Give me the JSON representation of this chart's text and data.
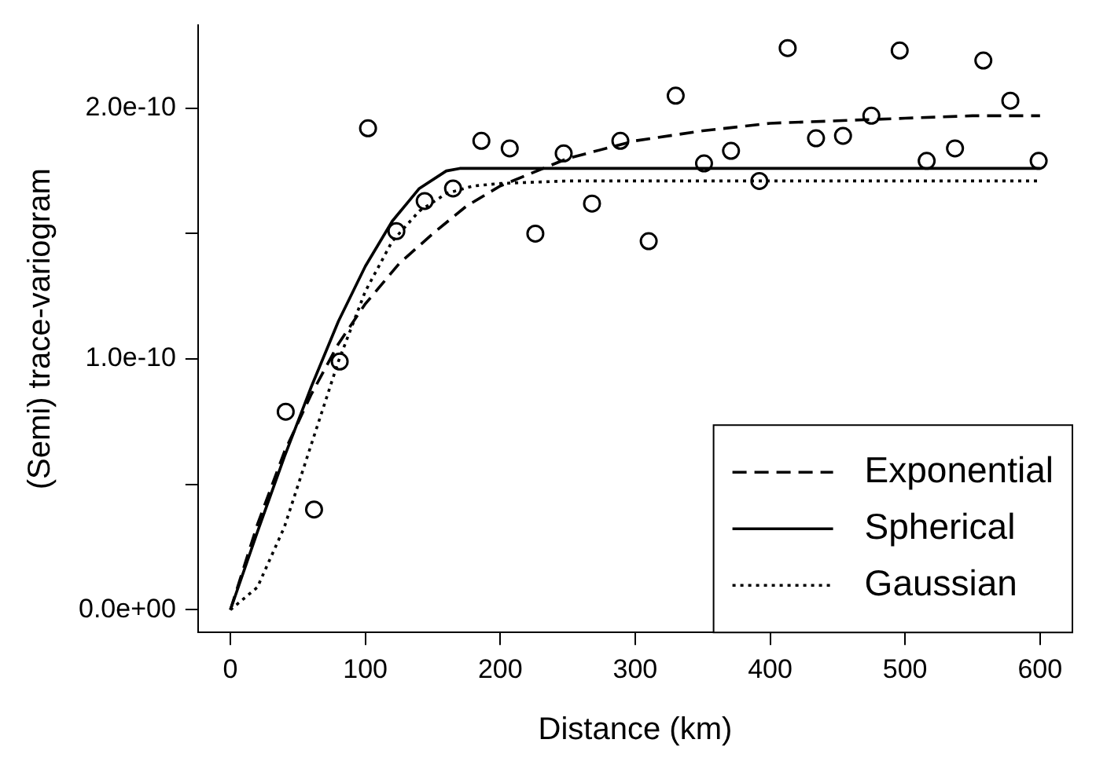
{
  "chart_data": {
    "type": "scatter",
    "xlabel": "Distance (km)",
    "ylabel": "(Semi) trace-variogram",
    "xlim": [
      -24,
      624
    ],
    "ylim": [
      -9e-12,
      2.33e-10
    ],
    "xticks": [
      0,
      100,
      200,
      300,
      400,
      500,
      600
    ],
    "yticks": [
      {
        "value": 0,
        "label": "0.0e+00"
      },
      {
        "value": 5e-11,
        "label": null
      },
      {
        "value": 1e-10,
        "label": "1.0e-10"
      },
      {
        "value": 1.5e-10,
        "label": null
      },
      {
        "value": 2e-10,
        "label": "2.0e-10"
      }
    ],
    "grid": false,
    "legend": "bottom right",
    "series": [
      {
        "color": "#000000",
        "marker": "circle",
        "x": [
          41,
          62,
          81,
          102,
          123,
          144,
          165,
          186,
          207,
          226,
          247,
          268,
          289,
          310,
          330,
          351,
          371,
          392,
          413,
          434,
          454,
          475,
          496,
          516,
          537,
          558,
          578,
          599
        ],
        "values": [
          7.9e-11,
          4e-11,
          9.9e-11,
          1.92e-10,
          1.51e-10,
          1.63e-10,
          1.68e-10,
          1.87e-10,
          1.84e-10,
          1.5e-10,
          1.82e-10,
          1.62e-10,
          1.87e-10,
          1.47e-10,
          2.05e-10,
          1.78e-10,
          1.83e-10,
          1.71e-10,
          2.24e-10,
          1.88e-10,
          1.89e-10,
          1.97e-10,
          2.23e-10,
          1.79e-10,
          1.84e-10,
          2.19e-10,
          2.03e-10,
          1.79e-10
        ]
      },
      {
        "type": "line",
        "name": "Exponential",
        "color": "#000000",
        "line_style": "dashed",
        "marker": "none",
        "x": [
          0,
          20,
          40,
          60,
          80,
          100,
          125,
          150,
          175,
          200,
          250,
          300,
          350,
          400,
          450,
          500,
          550,
          600
        ],
        "values": [
          0,
          3.4e-11,
          6.3e-11,
          8.6e-11,
          1.06e-10,
          1.22e-10,
          1.38e-10,
          1.5e-10,
          1.61e-10,
          1.69e-10,
          1.8e-10,
          1.87e-10,
          1.91e-10,
          1.94e-10,
          1.95e-10,
          1.96e-10,
          1.97e-10,
          1.97e-10
        ]
      },
      {
        "type": "line",
        "name": "Spherical",
        "color": "#000000",
        "line_style": "solid",
        "marker": "none",
        "x": [
          0,
          20,
          40,
          60,
          80,
          100,
          120,
          140,
          160,
          170,
          600
        ],
        "values": [
          0,
          3.1e-11,
          6.1e-11,
          8.9e-11,
          1.15e-10,
          1.37e-10,
          1.55e-10,
          1.68e-10,
          1.75e-10,
          1.76e-10,
          1.76e-10
        ]
      },
      {
        "type": "line",
        "name": "Gaussian",
        "color": "#000000",
        "line_style": "dotted",
        "marker": "none",
        "x": [
          0,
          20,
          40,
          60,
          80,
          100,
          120,
          140,
          160,
          180,
          200,
          250,
          600
        ],
        "values": [
          0,
          9e-12,
          3.3e-11,
          6.6e-11,
          9.9e-11,
          1.27e-10,
          1.47e-10,
          1.59e-10,
          1.66e-10,
          1.69e-10,
          1.7e-10,
          1.71e-10,
          1.71e-10
        ]
      }
    ]
  }
}
